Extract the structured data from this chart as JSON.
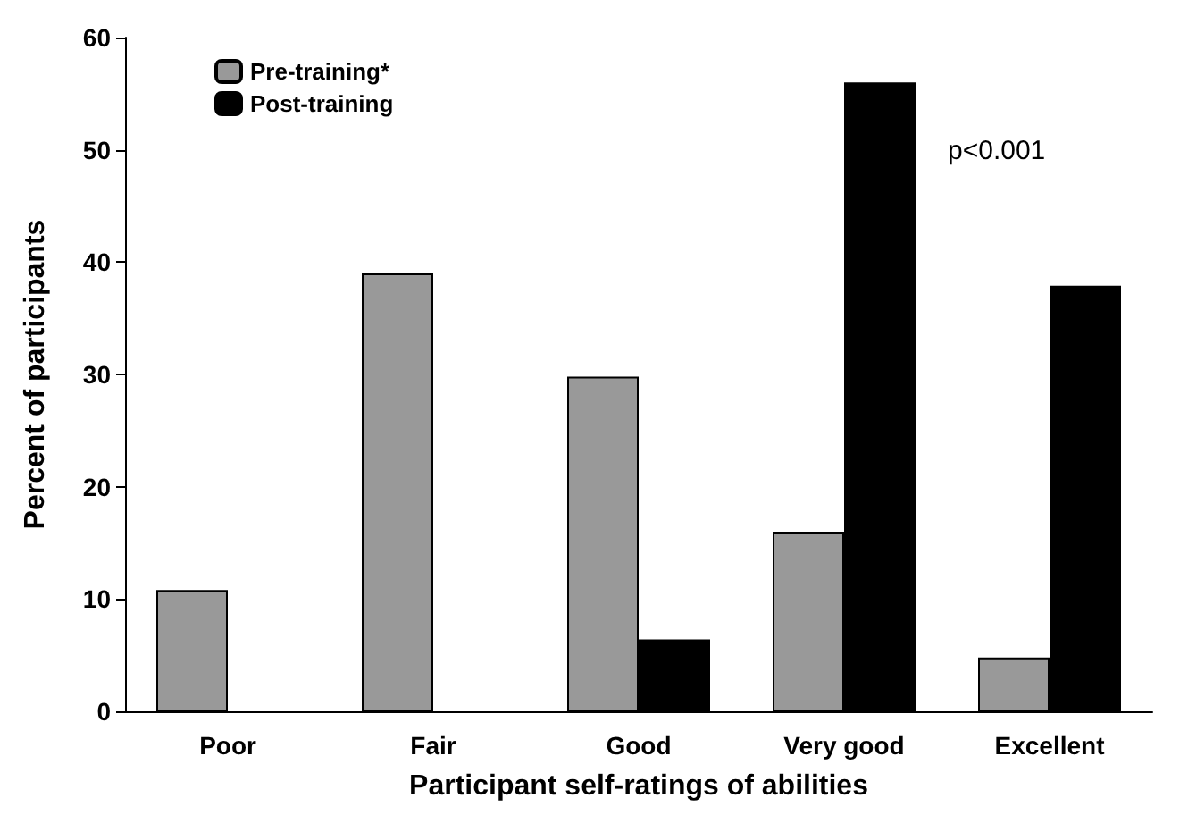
{
  "chart_data": {
    "type": "bar",
    "xlabel": "Participant self-ratings of abilities",
    "ylabel": "Percent of participants",
    "categories": [
      "Poor",
      "Fair",
      "Good",
      "Very good",
      "Excellent"
    ],
    "series": [
      {
        "name": "Pre-training*",
        "color": "#999999",
        "values": [
          10.8,
          39,
          29.8,
          16,
          4.8
        ]
      },
      {
        "name": "Post-training",
        "color": "#000000",
        "values": [
          null,
          null,
          6.4,
          56,
          37.9
        ]
      }
    ],
    "ylim": [
      0,
      60
    ],
    "yticks": [
      0,
      10,
      20,
      30,
      40,
      50,
      60
    ],
    "grid": false,
    "legend": "top left",
    "annotations": [
      "p<0.001"
    ]
  }
}
